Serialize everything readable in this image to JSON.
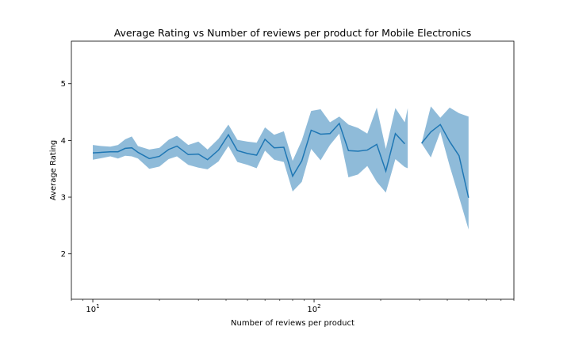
{
  "chart_data": {
    "type": "line",
    "title": "Average Rating vs Number of reviews per product for Mobile Electronics",
    "xlabel": "Number of reviews per product",
    "ylabel": "Average Rating",
    "x_scale": "log",
    "xlim": [
      8,
      800
    ],
    "ylim": [
      1.2,
      5.75
    ],
    "yticks": [
      2,
      3,
      4,
      5
    ],
    "xticks": [
      {
        "value": 10,
        "base": "10",
        "exp": "1"
      },
      {
        "value": 100,
        "base": "10",
        "exp": "2"
      }
    ],
    "grid": false,
    "legend": "none",
    "line_color": "#1f77b4",
    "band_color": "#1f77b4",
    "series": [
      {
        "segments": [
          {
            "x": [
              10,
              11,
              12,
              13,
              14,
              15,
              16,
              18,
              20,
              22,
              24,
              27,
              30,
              33,
              37,
              41,
              45,
              50,
              55,
              60,
              66,
              73,
              80,
              88,
              97,
              107,
              118,
              130,
              143,
              158,
              174,
              192,
              211,
              233,
              257
            ],
            "y": [
              3.78,
              3.79,
              3.8,
              3.8,
              3.86,
              3.87,
              3.79,
              3.68,
              3.72,
              3.84,
              3.9,
              3.75,
              3.76,
              3.66,
              3.83,
              4.1,
              3.82,
              3.77,
              3.74,
              4.02,
              3.87,
              3.88,
              3.37,
              3.64,
              4.18,
              4.11,
              4.12,
              4.3,
              3.82,
              3.81,
              3.83,
              3.93,
              3.46,
              4.12,
              3.94
            ],
            "lower": [
              3.66,
              3.69,
              3.72,
              3.68,
              3.73,
              3.72,
              3.68,
              3.5,
              3.54,
              3.67,
              3.72,
              3.57,
              3.52,
              3.49,
              3.63,
              3.9,
              3.62,
              3.57,
              3.51,
              3.82,
              3.66,
              3.62,
              3.1,
              3.27,
              3.85,
              3.65,
              3.92,
              4.12,
              3.35,
              3.4,
              3.55,
              3.27,
              3.08,
              3.67,
              3.53
            ]
          },
          {
            "x": [
              265
            ],
            "y": [
              4.03
            ],
            "lower": [
              3.51
            ]
          }
        ],
        "upper_all": [
          3.92,
          3.9,
          3.89,
          3.92,
          4.02,
          4.07,
          3.9,
          3.84,
          3.87,
          4.01,
          4.08,
          3.92,
          3.98,
          3.84,
          4.03,
          4.28,
          4.01,
          3.98,
          3.96,
          4.23,
          4.1,
          4.16,
          3.64,
          4.0,
          4.52,
          4.55,
          4.32,
          4.42,
          4.28,
          4.22,
          4.12,
          4.58,
          3.85,
          4.57,
          4.32,
          4.57
        ]
      },
      {
        "segments": [
          {
            "x": [
              306,
              337,
              372,
              410,
              452,
              499
            ],
            "y": [
              3.95,
              4.15,
              4.28,
              3.98,
              3.73,
              2.99
            ],
            "upper": [
              3.95,
              4.6,
              4.4,
              4.58,
              4.48,
              4.42
            ],
            "lower": [
              3.95,
              3.7,
              4.15,
              3.55,
              3.0,
              2.43
            ]
          }
        ]
      }
    ]
  }
}
